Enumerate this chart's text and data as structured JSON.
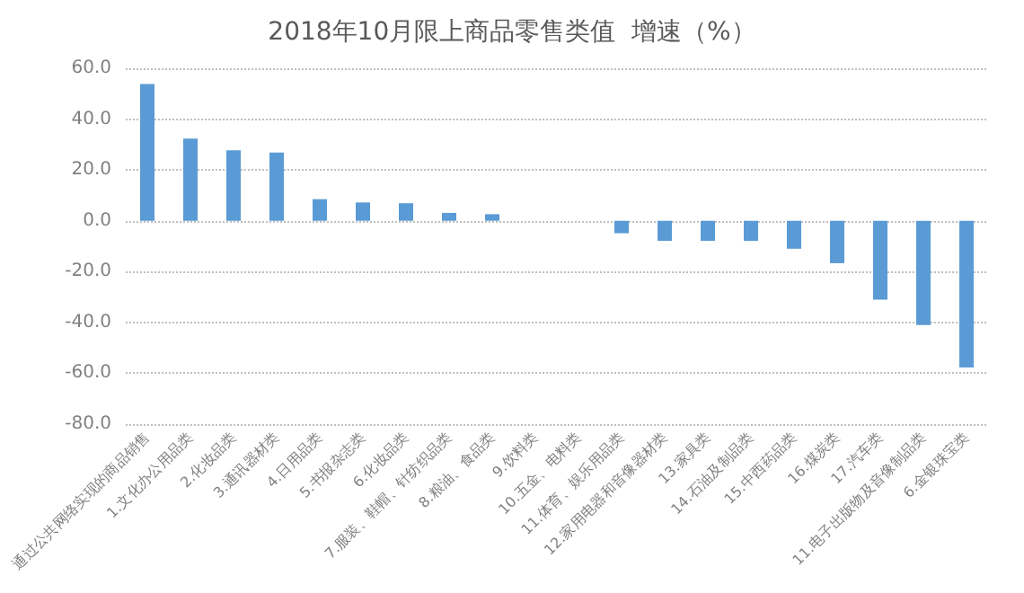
{
  "chart_data": {
    "type": "bar",
    "title": "2018年10月限上商品零售类值  增速（%）",
    "categories": [
      "通过公共网络实现的商品销售",
      "1.文化办公用品类",
      "2.化妆品类",
      "3.通讯器材类",
      "4.日用品类",
      "5.书报杂志类",
      "6.化妆品类",
      "7.服装、鞋帽、针纺织品类",
      "8.粮油、食品类",
      "9.饮料类",
      "10.五金、电料类",
      "11.体育、娱乐用品类",
      "12.家用电器和音像器材类",
      "13.家具类",
      "14.石油及制品类",
      "15.中西药品类",
      "16.煤炭类",
      "17.汽车类",
      "11.电子出版物及音像制品类",
      "6.金银珠宝类"
    ],
    "values": [
      53.8,
      32.3,
      27.7,
      26.9,
      8.5,
      7.2,
      6.9,
      3.1,
      2.6,
      0,
      0,
      -4.9,
      -7.9,
      -7.9,
      -7.9,
      -11.0,
      -16.7,
      -31.0,
      -41.0,
      -57.7
    ],
    "color": "#5b9bd5",
    "ylim": [
      -80,
      60
    ],
    "yticks": [
      {
        "value": -80,
        "label": "-80.0"
      },
      {
        "value": -60,
        "label": "-60.0"
      },
      {
        "value": -40,
        "label": "-40.0"
      },
      {
        "value": -20,
        "label": "-20.0"
      },
      {
        "value": 0,
        "label": "0.0"
      },
      {
        "value": 20,
        "label": "20.0"
      },
      {
        "value": 40,
        "label": "40.0"
      },
      {
        "value": 60,
        "label": "60.0"
      }
    ],
    "grid": true
  }
}
